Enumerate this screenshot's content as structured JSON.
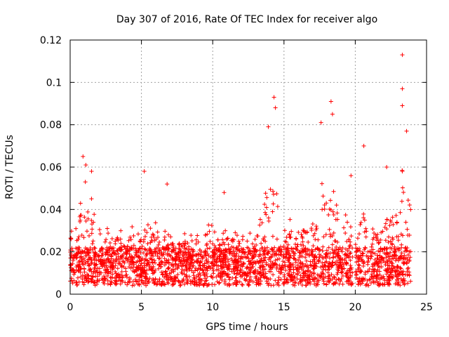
{
  "chart_data": {
    "type": "scatter",
    "title": "Day 307 of 2016, Rate Of TEC Index for receiver algo",
    "xlabel": "GPS time / hours",
    "ylabel": "ROTI / TECUs",
    "xlim": [
      0,
      25
    ],
    "ylim": [
      0,
      0.12
    ],
    "xticks": [
      0,
      5,
      10,
      15,
      20,
      25
    ],
    "yticks": [
      0,
      0.02,
      0.04,
      0.06,
      0.08,
      0.1,
      0.12
    ],
    "xtick_labels": [
      "0",
      "5",
      "10",
      "15",
      "20",
      "25"
    ],
    "ytick_labels": [
      "0",
      "0.02",
      "0.04",
      "0.06",
      "0.08",
      "0.1",
      "0.12"
    ],
    "grid": true,
    "marker": "+",
    "color": "#ff0000",
    "data_range": {
      "x_start": 0.0,
      "x_end": 23.9,
      "gap": [
        19.8,
        20.0
      ]
    },
    "series": [
      {
        "name": "ROTI",
        "notable_points": [
          {
            "x": 0.9,
            "y": 0.065
          },
          {
            "x": 1.1,
            "y": 0.061
          },
          {
            "x": 1.5,
            "y": 0.058
          },
          {
            "x": 5.2,
            "y": 0.058
          },
          {
            "x": 6.8,
            "y": 0.052
          },
          {
            "x": 10.8,
            "y": 0.048
          },
          {
            "x": 13.9,
            "y": 0.079
          },
          {
            "x": 14.3,
            "y": 0.093
          },
          {
            "x": 14.4,
            "y": 0.088
          },
          {
            "x": 17.6,
            "y": 0.081
          },
          {
            "x": 18.3,
            "y": 0.091
          },
          {
            "x": 18.4,
            "y": 0.085
          },
          {
            "x": 19.7,
            "y": 0.056
          },
          {
            "x": 20.6,
            "y": 0.07
          },
          {
            "x": 22.2,
            "y": 0.06
          },
          {
            "x": 23.3,
            "y": 0.113
          },
          {
            "x": 23.3,
            "y": 0.097
          },
          {
            "x": 23.3,
            "y": 0.089
          },
          {
            "x": 23.6,
            "y": 0.077
          }
        ]
      }
    ]
  }
}
